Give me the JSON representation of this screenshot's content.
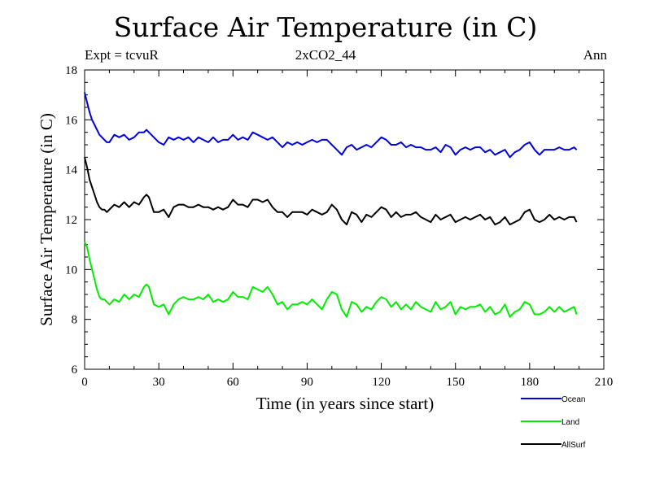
{
  "header": {
    "title": "Surface Air Temperature (in C)",
    "left": "Expt = tcvuR",
    "center": "2xCO2_44",
    "right": "Ann"
  },
  "chart_data": {
    "type": "line",
    "title": "Surface Air Temperature (in C)",
    "xlabel": "Time (in years since start)",
    "ylabel": "Surface Air Temperature (in C)",
    "xlim": [
      0,
      210
    ],
    "ylim": [
      6,
      18
    ],
    "xticks": [
      0,
      30,
      60,
      90,
      120,
      150,
      180,
      210
    ],
    "yticks": [
      6,
      8,
      10,
      12,
      14,
      16,
      18
    ],
    "legend_position": "bottom-right",
    "grid": false,
    "series": [
      {
        "name": "Ocean",
        "color": "#0000dd",
        "x": [
          0,
          1,
          2,
          3,
          4,
          5,
          6,
          7,
          8,
          9,
          10,
          12,
          14,
          16,
          18,
          20,
          22,
          24,
          25,
          26,
          28,
          30,
          32,
          34,
          36,
          38,
          40,
          42,
          44,
          46,
          48,
          50,
          52,
          54,
          56,
          58,
          60,
          62,
          64,
          66,
          68,
          70,
          72,
          74,
          76,
          78,
          80,
          82,
          84,
          86,
          88,
          90,
          92,
          94,
          96,
          98,
          100,
          102,
          104,
          106,
          108,
          110,
          112,
          114,
          116,
          118,
          120,
          122,
          124,
          126,
          128,
          130,
          132,
          134,
          136,
          138,
          140,
          142,
          144,
          146,
          148,
          150,
          152,
          154,
          156,
          158,
          160,
          162,
          164,
          166,
          168,
          170,
          172,
          174,
          176,
          178,
          180,
          182,
          184,
          186,
          188,
          190,
          192,
          194,
          196,
          198,
          199
        ],
        "y": [
          17.1,
          16.7,
          16.3,
          16.0,
          15.8,
          15.6,
          15.4,
          15.3,
          15.2,
          15.1,
          15.1,
          15.4,
          15.3,
          15.4,
          15.2,
          15.3,
          15.5,
          15.5,
          15.6,
          15.5,
          15.3,
          15.1,
          15.0,
          15.3,
          15.2,
          15.3,
          15.2,
          15.3,
          15.1,
          15.3,
          15.2,
          15.1,
          15.3,
          15.1,
          15.2,
          15.2,
          15.4,
          15.2,
          15.3,
          15.2,
          15.5,
          15.4,
          15.3,
          15.2,
          15.3,
          15.1,
          14.9,
          15.1,
          15.0,
          15.1,
          15.0,
          15.1,
          15.2,
          15.1,
          15.2,
          15.2,
          15.0,
          14.8,
          14.6,
          14.9,
          15.0,
          14.8,
          14.9,
          15.0,
          14.9,
          15.1,
          15.3,
          15.2,
          15.0,
          15.0,
          15.1,
          14.9,
          15.0,
          14.9,
          14.9,
          14.8,
          14.8,
          14.9,
          14.7,
          15.0,
          14.9,
          14.6,
          14.8,
          14.9,
          14.8,
          14.9,
          14.9,
          14.7,
          14.8,
          14.6,
          14.7,
          14.8,
          14.5,
          14.7,
          14.8,
          15.0,
          15.1,
          14.8,
          14.6,
          14.8,
          14.8,
          14.8,
          14.9,
          14.8,
          14.8,
          14.9,
          14.8
        ]
      },
      {
        "name": "Land",
        "color": "#00ee00",
        "x": [
          0,
          1,
          2,
          3,
          4,
          5,
          6,
          7,
          8,
          9,
          10,
          12,
          14,
          16,
          18,
          20,
          22,
          24,
          25,
          26,
          28,
          30,
          32,
          34,
          36,
          38,
          40,
          42,
          44,
          46,
          48,
          50,
          52,
          54,
          56,
          58,
          60,
          62,
          64,
          66,
          68,
          70,
          72,
          74,
          76,
          78,
          80,
          82,
          84,
          86,
          88,
          90,
          92,
          94,
          96,
          98,
          100,
          102,
          104,
          106,
          108,
          110,
          112,
          114,
          116,
          118,
          120,
          122,
          124,
          126,
          128,
          130,
          132,
          134,
          136,
          138,
          140,
          142,
          144,
          146,
          148,
          150,
          152,
          154,
          156,
          158,
          160,
          162,
          164,
          166,
          168,
          170,
          172,
          174,
          176,
          178,
          180,
          182,
          184,
          186,
          188,
          190,
          192,
          194,
          196,
          198,
          199
        ],
        "y": [
          11.1,
          10.9,
          10.4,
          10.0,
          9.6,
          9.2,
          8.9,
          8.8,
          8.8,
          8.7,
          8.6,
          8.8,
          8.7,
          9.0,
          8.8,
          9.0,
          8.9,
          9.3,
          9.4,
          9.3,
          8.6,
          8.5,
          8.6,
          8.2,
          8.6,
          8.8,
          8.9,
          8.8,
          8.8,
          8.9,
          8.8,
          9.0,
          8.7,
          8.8,
          8.7,
          8.8,
          9.1,
          8.9,
          8.9,
          8.8,
          9.3,
          9.2,
          9.1,
          9.3,
          9.0,
          8.6,
          8.7,
          8.4,
          8.6,
          8.6,
          8.7,
          8.6,
          8.8,
          8.6,
          8.4,
          8.8,
          9.1,
          9.0,
          8.4,
          8.1,
          8.7,
          8.6,
          8.3,
          8.5,
          8.4,
          8.7,
          8.9,
          8.8,
          8.5,
          8.7,
          8.4,
          8.6,
          8.4,
          8.7,
          8.5,
          8.4,
          8.3,
          8.7,
          8.4,
          8.5,
          8.7,
          8.2,
          8.5,
          8.4,
          8.5,
          8.5,
          8.6,
          8.3,
          8.5,
          8.2,
          8.3,
          8.6,
          8.1,
          8.3,
          8.4,
          8.7,
          8.6,
          8.2,
          8.2,
          8.3,
          8.5,
          8.3,
          8.5,
          8.3,
          8.4,
          8.5,
          8.2
        ]
      },
      {
        "name": "AllSurf",
        "color": "#000000",
        "x": [
          0,
          1,
          2,
          3,
          4,
          5,
          6,
          7,
          8,
          9,
          10,
          12,
          14,
          16,
          18,
          20,
          22,
          24,
          25,
          26,
          28,
          30,
          32,
          34,
          36,
          38,
          40,
          42,
          44,
          46,
          48,
          50,
          52,
          54,
          56,
          58,
          60,
          62,
          64,
          66,
          68,
          70,
          72,
          74,
          76,
          78,
          80,
          82,
          84,
          86,
          88,
          90,
          92,
          94,
          96,
          98,
          100,
          102,
          104,
          106,
          108,
          110,
          112,
          114,
          116,
          118,
          120,
          122,
          124,
          126,
          128,
          130,
          132,
          134,
          136,
          138,
          140,
          142,
          144,
          146,
          148,
          150,
          152,
          154,
          156,
          158,
          160,
          162,
          164,
          166,
          168,
          170,
          172,
          174,
          176,
          178,
          180,
          182,
          184,
          186,
          188,
          190,
          192,
          194,
          196,
          198,
          199
        ],
        "y": [
          14.5,
          14.1,
          13.6,
          13.3,
          13.0,
          12.7,
          12.5,
          12.4,
          12.4,
          12.3,
          12.4,
          12.6,
          12.5,
          12.7,
          12.5,
          12.7,
          12.6,
          12.9,
          13.0,
          12.9,
          12.3,
          12.3,
          12.4,
          12.1,
          12.5,
          12.6,
          12.6,
          12.5,
          12.5,
          12.6,
          12.5,
          12.5,
          12.4,
          12.5,
          12.4,
          12.5,
          12.8,
          12.6,
          12.6,
          12.5,
          12.8,
          12.8,
          12.7,
          12.8,
          12.5,
          12.3,
          12.3,
          12.1,
          12.3,
          12.3,
          12.3,
          12.2,
          12.4,
          12.3,
          12.2,
          12.3,
          12.6,
          12.4,
          12.0,
          11.8,
          12.3,
          12.2,
          11.9,
          12.2,
          12.1,
          12.3,
          12.5,
          12.4,
          12.1,
          12.3,
          12.1,
          12.2,
          12.2,
          12.3,
          12.1,
          12.0,
          11.9,
          12.2,
          12.0,
          12.1,
          12.2,
          11.9,
          12.0,
          12.1,
          12.0,
          12.1,
          12.2,
          12.0,
          12.1,
          11.8,
          11.9,
          12.1,
          11.8,
          11.9,
          12.0,
          12.3,
          12.4,
          12.0,
          11.9,
          12.0,
          12.2,
          12.0,
          12.1,
          12.0,
          12.1,
          12.1,
          11.9
        ]
      }
    ]
  }
}
